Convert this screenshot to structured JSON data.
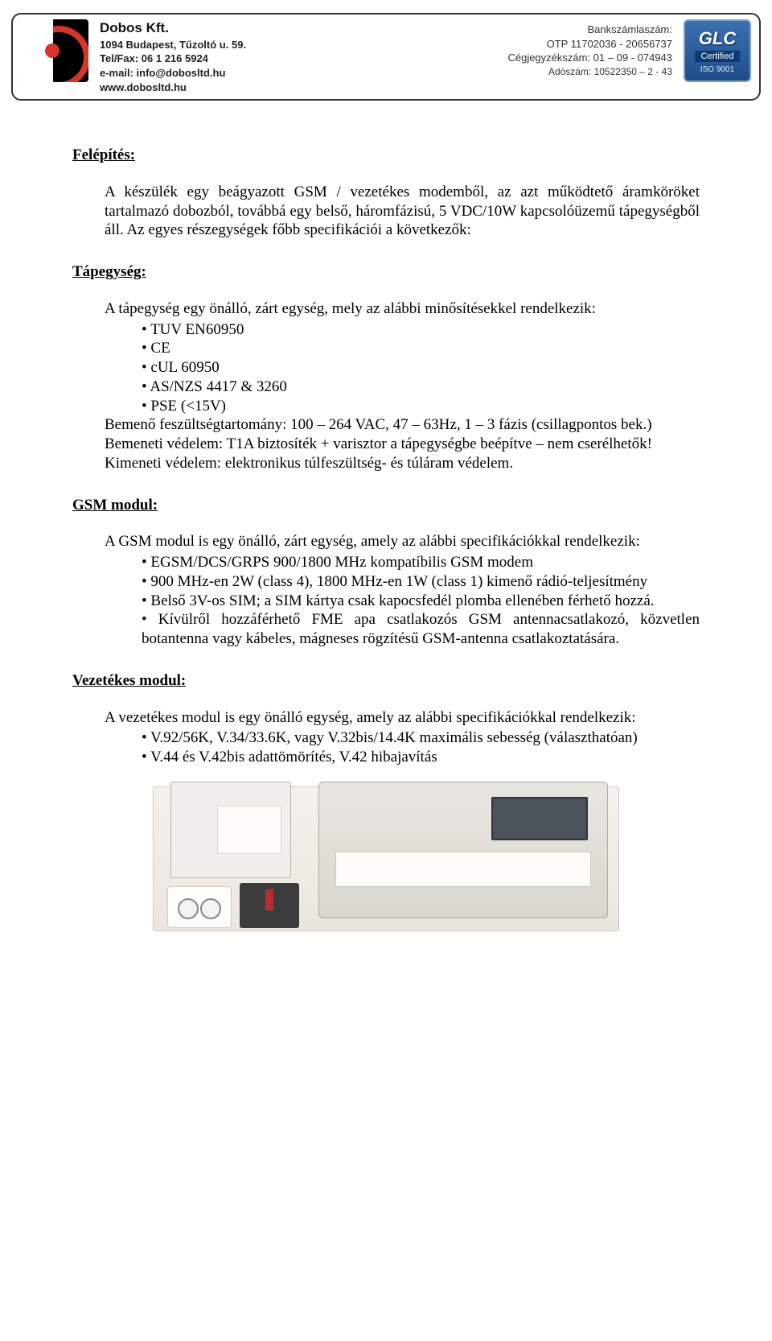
{
  "header": {
    "company_name": "Dobos Kft.",
    "address": "1094 Budapest, Tűzoltó u. 59.",
    "telfax_label": "Tel/Fax: ",
    "telfax": "06 1 216 5924",
    "email_label": "e-mail: ",
    "email": "info@dobosltd.hu",
    "web": "www.dobosltd.hu",
    "bank_label": "Bankszámlaszám:",
    "bank": "OTP 11702036 - 20656737",
    "regno_label": "Cégjegyzékszám: ",
    "regno": "01 – 09 - 074943",
    "taxno_label": "Adószám: ",
    "taxno": "10522350 – 2 - 43",
    "cert_brand": "GLC",
    "cert_text": "Certified",
    "cert_iso": "ISO 9001",
    "colors": {
      "logo_red": "#d4342a",
      "badge_blue_top": "#3c6fb0",
      "badge_blue_bottom": "#1f4d8a"
    }
  },
  "sections": {
    "felepites": {
      "heading": "Felépítés:",
      "para": "A készülék egy beágyazott GSM / vezetékes modemből, az azt működtető áramköröket tartalmazó dobozból, továbbá egy belső, háromfázisú, 5 VDC/10W kapcsolóüzemű tápegységből áll. Az egyes részegységek főbb specifikációi a következők:"
    },
    "tapegyseg": {
      "heading": "Tápegység:",
      "intro": "A tápegység egy önálló, zárt egység, mely az alábbi minősítésekkel rendelkezik:",
      "bullets": [
        "TUV EN60950",
        "CE",
        "cUL 60950",
        "AS/NZS 4417 & 3260",
        "PSE (<15V)"
      ],
      "line1": "Bemenő feszültségtartomány: 100 – 264 VAC, 47 – 63Hz, 1 – 3 fázis (csillagpontos bek.)",
      "line2": "Bemeneti védelem: T1A biztosíték + varisztor a tápegységbe beépítve – nem cserélhetők!",
      "line3": "Kimeneti védelem: elektronikus túlfeszültség- és túláram védelem."
    },
    "gsm": {
      "heading": "GSM modul:",
      "intro": "A GSM modul is egy önálló, zárt egység, amely az alábbi specifikációkkal rendelkezik:",
      "bullets": [
        "EGSM/DCS/GRPS 900/1800 MHz kompatíbilis GSM modem",
        "900 MHz-en 2W (class 4), 1800 MHz-en 1W (class 1) kimenő rádió-teljesítmény",
        "Belső 3V-os SIM; a SIM kártya csak kapocsfedél plomba ellenében férhető hozzá.",
        "Kívülről hozzáférhető FME apa csatlakozós GSM antennacsatlakozó, közvetlen botantenna vagy kábeles, mágneses rögzítésű GSM-antenna csatlakoztatására."
      ]
    },
    "vezetekes": {
      "heading": "Vezetékes modul:",
      "intro": "A vezetékes modul is egy önálló egység, amely az alábbi specifikációkkal rendelkezik:",
      "bullets": [
        "V.92/56K, V.34/33.6K, vagy V.32bis/14.4K maximális sebesség (választhatóan)",
        "V.44 és V.42bis adattömörítés, V.42 hibajavítás"
      ]
    }
  }
}
